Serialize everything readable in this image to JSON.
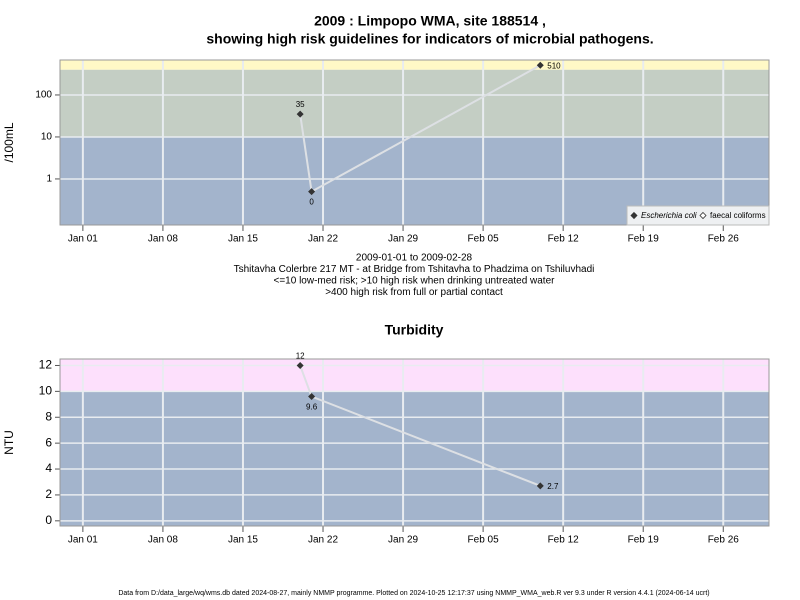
{
  "chart_data": [
    {
      "type": "line",
      "title": [
        "2009 : Limpopo WMA, site 188514 ,",
        "showing high risk guidelines for indicators of microbial pathogens."
      ],
      "subtitle": [
        "2009-01-01 to 2009-02-28",
        "Tshitavha Colerbre 217 MT - at Bridge from Tshitavha to Phadzima on Tshiluvhadi",
        "<=10 low-med risk; >10 high risk when drinking untreated water",
        ">400 high risk from full or partial contact"
      ],
      "ylabel": "/100mL",
      "log_y": true,
      "x": [
        "2009-01-20",
        "2009-01-21",
        "2009-02-10"
      ],
      "series": [
        {
          "name": "Escherichia coli",
          "color": "#333333",
          "values": [
            35,
            0.5,
            510
          ],
          "value_labels": [
            "35",
            "0",
            "510"
          ]
        },
        {
          "name": "faecal coliforms",
          "color": "#333333",
          "values": [
            null,
            null,
            null
          ]
        }
      ],
      "xlim": [
        "2008-12-30",
        "2009-03-02"
      ],
      "xticks": [
        {
          "value": "2009-01-01",
          "label": "Jan 01"
        },
        {
          "value": "2009-01-08",
          "label": "Jan 08"
        },
        {
          "value": "2009-01-15",
          "label": "Jan 15"
        },
        {
          "value": "2009-01-22",
          "label": "Jan 22"
        },
        {
          "value": "2009-01-29",
          "label": "Jan 29"
        },
        {
          "value": "2009-02-05",
          "label": "Feb 05"
        },
        {
          "value": "2009-02-12",
          "label": "Feb 12"
        },
        {
          "value": "2009-02-19",
          "label": "Feb 19"
        },
        {
          "value": "2009-02-26",
          "label": "Feb 26"
        }
      ],
      "ylim": [
        0.08,
        680
      ],
      "yticks": [
        1,
        10,
        100
      ],
      "thresholds": [
        10,
        400
      ],
      "band_colors": [
        "#a3b4cc",
        "#c4cec4",
        "#fff9c6"
      ],
      "grid": true,
      "legend": "bottom-right"
    },
    {
      "type": "line",
      "title": "Turbidity",
      "ylabel": "NTU",
      "log_y": false,
      "x": [
        "2009-01-20",
        "2009-01-21",
        "2009-02-10"
      ],
      "series": [
        {
          "name": "Turbidity",
          "color": "#333333",
          "values": [
            12,
            9.6,
            2.7
          ]
        }
      ],
      "xlim": [
        "2008-12-30",
        "2009-03-02"
      ],
      "xticks": [
        {
          "value": "2009-01-01",
          "label": "Jan 01"
        },
        {
          "value": "2009-01-08",
          "label": "Jan 08"
        },
        {
          "value": "2009-01-15",
          "label": "Jan 15"
        },
        {
          "value": "2009-01-22",
          "label": "Jan 22"
        },
        {
          "value": "2009-01-29",
          "label": "Jan 29"
        },
        {
          "value": "2009-02-05",
          "label": "Feb 05"
        },
        {
          "value": "2009-02-12",
          "label": "Feb 12"
        },
        {
          "value": "2009-02-19",
          "label": "Feb 19"
        },
        {
          "value": "2009-02-26",
          "label": "Feb 26"
        }
      ],
      "ylim": [
        -0.4,
        12.5
      ],
      "yticks": [
        0,
        2,
        4,
        6,
        8,
        10,
        12
      ],
      "thresholds": [
        10
      ],
      "band_colors": [
        "#a3b4cc",
        "#fde0fc"
      ],
      "grid": true
    }
  ],
  "footer": "Data from D:/data_large/wq/wms.db dated 2024-08-27, mainly NMMP programme. Plotted on 2024-10-25 12:17:37 using NMMP_WMA_web.R ver 9.3 under R version 4.4.1 (2024-06-14 ucrt)"
}
